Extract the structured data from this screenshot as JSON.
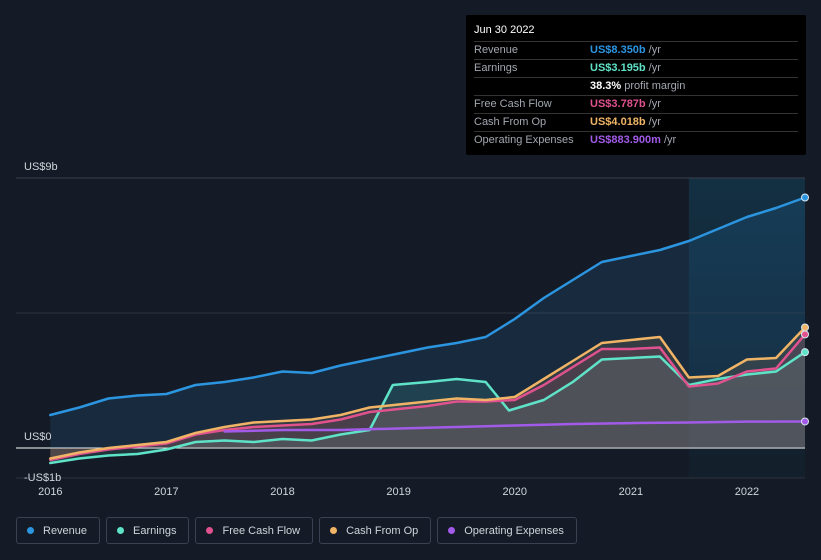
{
  "tooltip": {
    "date": "Jun 30 2022",
    "rows": [
      {
        "label": "Revenue",
        "value": "US$8.350b",
        "unit": "/yr",
        "color": "#2c95e0"
      },
      {
        "label": "Earnings",
        "value": "US$3.195b",
        "unit": "/yr",
        "color": "#5fe3c8"
      },
      {
        "label": "",
        "value": "38.3%",
        "unit": "profit margin",
        "color": "#ffffff"
      },
      {
        "label": "Free Cash Flow",
        "value": "US$3.787b",
        "unit": "/yr",
        "color": "#e0528e"
      },
      {
        "label": "Cash From Op",
        "value": "US$4.018b",
        "unit": "/yr",
        "color": "#f0b466"
      },
      {
        "label": "Operating Expenses",
        "value": "US$883.900m",
        "unit": "/yr",
        "color": "#a25ae8"
      }
    ]
  },
  "chart_data": {
    "type": "line",
    "title": "",
    "xlabel": "",
    "ylabel": "",
    "ylim": [
      -1,
      9
    ],
    "y_tick_labels": [
      "US$9b",
      "US$0",
      "-US$1b"
    ],
    "x_ticks": [
      2016,
      2017,
      2018,
      2019,
      2020,
      2021,
      2022
    ],
    "x_tick_labels": [
      "2016",
      "2017",
      "2018",
      "2019",
      "2020",
      "2021",
      "2022"
    ],
    "xlim": [
      2015.98,
      2022.5
    ],
    "forecast_start": 2021.5,
    "series": [
      {
        "name": "Revenue",
        "color": "#2c95e0",
        "fill": true,
        "points": [
          [
            2016.0,
            1.1
          ],
          [
            2016.25,
            1.35
          ],
          [
            2016.5,
            1.65
          ],
          [
            2016.75,
            1.75
          ],
          [
            2017.0,
            1.8
          ],
          [
            2017.25,
            2.1
          ],
          [
            2017.5,
            2.2
          ],
          [
            2017.75,
            2.35
          ],
          [
            2018.0,
            2.55
          ],
          [
            2018.25,
            2.5
          ],
          [
            2018.5,
            2.75
          ],
          [
            2018.75,
            2.95
          ],
          [
            2019.0,
            3.15
          ],
          [
            2019.25,
            3.35
          ],
          [
            2019.5,
            3.5
          ],
          [
            2019.75,
            3.7
          ],
          [
            2020.0,
            4.3
          ],
          [
            2020.25,
            5.0
          ],
          [
            2020.5,
            5.6
          ],
          [
            2020.75,
            6.2
          ],
          [
            2021.0,
            6.4
          ],
          [
            2021.25,
            6.6
          ],
          [
            2021.5,
            6.9
          ],
          [
            2021.75,
            7.3
          ],
          [
            2022.0,
            7.7
          ],
          [
            2022.25,
            8.0
          ],
          [
            2022.5,
            8.35
          ]
        ]
      },
      {
        "name": "Earnings",
        "color": "#5fe3c8",
        "fill": true,
        "points": [
          [
            2016.0,
            -0.5
          ],
          [
            2016.25,
            -0.35
          ],
          [
            2016.5,
            -0.25
          ],
          [
            2016.75,
            -0.2
          ],
          [
            2017.0,
            -0.05
          ],
          [
            2017.25,
            0.2
          ],
          [
            2017.5,
            0.25
          ],
          [
            2017.75,
            0.2
          ],
          [
            2018.0,
            0.3
          ],
          [
            2018.25,
            0.25
          ],
          [
            2018.5,
            0.45
          ],
          [
            2018.75,
            0.6
          ],
          [
            2018.95,
            2.1
          ],
          [
            2019.25,
            2.2
          ],
          [
            2019.5,
            2.3
          ],
          [
            2019.75,
            2.2
          ],
          [
            2019.95,
            1.25
          ],
          [
            2020.25,
            1.6
          ],
          [
            2020.5,
            2.2
          ],
          [
            2020.75,
            2.95
          ],
          [
            2021.0,
            3.0
          ],
          [
            2021.25,
            3.05
          ],
          [
            2021.5,
            2.1
          ],
          [
            2021.75,
            2.3
          ],
          [
            2022.0,
            2.45
          ],
          [
            2022.25,
            2.55
          ],
          [
            2022.5,
            3.195
          ]
        ]
      },
      {
        "name": "Free Cash Flow",
        "color": "#e0528e",
        "fill": true,
        "points": [
          [
            2016.0,
            -0.4
          ],
          [
            2016.25,
            -0.2
          ],
          [
            2016.5,
            -0.05
          ],
          [
            2016.75,
            0.05
          ],
          [
            2017.0,
            0.15
          ],
          [
            2017.25,
            0.45
          ],
          [
            2017.5,
            0.6
          ],
          [
            2017.75,
            0.7
          ],
          [
            2018.0,
            0.75
          ],
          [
            2018.25,
            0.8
          ],
          [
            2018.5,
            0.95
          ],
          [
            2018.75,
            1.2
          ],
          [
            2019.0,
            1.3
          ],
          [
            2019.25,
            1.4
          ],
          [
            2019.5,
            1.55
          ],
          [
            2019.75,
            1.55
          ],
          [
            2020.0,
            1.6
          ],
          [
            2020.25,
            2.1
          ],
          [
            2020.5,
            2.7
          ],
          [
            2020.75,
            3.3
          ],
          [
            2021.0,
            3.3
          ],
          [
            2021.25,
            3.35
          ],
          [
            2021.5,
            2.05
          ],
          [
            2021.75,
            2.15
          ],
          [
            2022.0,
            2.55
          ],
          [
            2022.25,
            2.65
          ],
          [
            2022.5,
            3.787
          ]
        ]
      },
      {
        "name": "Cash From Op",
        "color": "#f0b466",
        "fill": true,
        "points": [
          [
            2016.0,
            -0.35
          ],
          [
            2016.25,
            -0.15
          ],
          [
            2016.5,
            0.0
          ],
          [
            2016.75,
            0.1
          ],
          [
            2017.0,
            0.2
          ],
          [
            2017.25,
            0.5
          ],
          [
            2017.5,
            0.7
          ],
          [
            2017.75,
            0.85
          ],
          [
            2018.0,
            0.9
          ],
          [
            2018.25,
            0.95
          ],
          [
            2018.5,
            1.1
          ],
          [
            2018.75,
            1.35
          ],
          [
            2019.0,
            1.45
          ],
          [
            2019.25,
            1.55
          ],
          [
            2019.5,
            1.65
          ],
          [
            2019.75,
            1.6
          ],
          [
            2020.0,
            1.7
          ],
          [
            2020.25,
            2.3
          ],
          [
            2020.5,
            2.9
          ],
          [
            2020.75,
            3.5
          ],
          [
            2021.0,
            3.6
          ],
          [
            2021.25,
            3.7
          ],
          [
            2021.5,
            2.35
          ],
          [
            2021.75,
            2.4
          ],
          [
            2022.0,
            2.95
          ],
          [
            2022.25,
            3.0
          ],
          [
            2022.5,
            4.018
          ]
        ]
      },
      {
        "name": "Operating Expenses",
        "color": "#a25ae8",
        "fill": false,
        "points": [
          [
            2017.5,
            0.55
          ],
          [
            2018.0,
            0.6
          ],
          [
            2018.5,
            0.6
          ],
          [
            2019.0,
            0.65
          ],
          [
            2019.5,
            0.7
          ],
          [
            2020.0,
            0.75
          ],
          [
            2020.5,
            0.8
          ],
          [
            2021.0,
            0.83
          ],
          [
            2021.5,
            0.85
          ],
          [
            2022.0,
            0.88
          ],
          [
            2022.5,
            0.8839
          ]
        ]
      }
    ]
  },
  "legend": [
    {
      "label": "Revenue",
      "color": "#2c95e0"
    },
    {
      "label": "Earnings",
      "color": "#5fe3c8"
    },
    {
      "label": "Free Cash Flow",
      "color": "#e0528e"
    },
    {
      "label": "Cash From Op",
      "color": "#f0b466"
    },
    {
      "label": "Operating Expenses",
      "color": "#a25ae8"
    }
  ]
}
